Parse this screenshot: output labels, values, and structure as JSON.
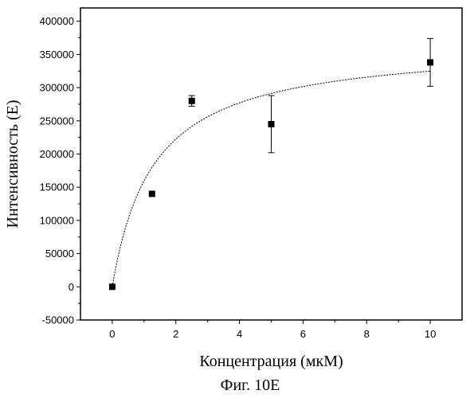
{
  "chart_data": {
    "type": "scatter",
    "xlabel": "Концентрация (мкМ)",
    "ylabel": "Интенсивность (E)",
    "xlim": [
      -1,
      11
    ],
    "ylim": [
      -50000,
      420000
    ],
    "xticks": [
      0,
      2,
      4,
      6,
      8,
      10
    ],
    "yticks": [
      -50000,
      0,
      50000,
      100000,
      150000,
      200000,
      250000,
      300000,
      350000,
      400000
    ],
    "series": [
      {
        "marker": "square",
        "color": "#000000",
        "points": [
          {
            "x": 0,
            "y": 0,
            "err": 0
          },
          {
            "x": 1.25,
            "y": 140000,
            "err": 0
          },
          {
            "x": 2.5,
            "y": 280000,
            "err": 8000
          },
          {
            "x": 5,
            "y": 245000,
            "err": 43000
          },
          {
            "x": 10,
            "y": 338000,
            "err": 36000
          }
        ]
      }
    ],
    "fit": {
      "type": "hyperbolic",
      "formula": "y = a*x/(b+x)",
      "a": 367000,
      "b": 1.3,
      "x_range": [
        0,
        10
      ],
      "style": "dotted"
    },
    "grid": false,
    "legend": "none"
  },
  "caption": "Фиг. 10E"
}
